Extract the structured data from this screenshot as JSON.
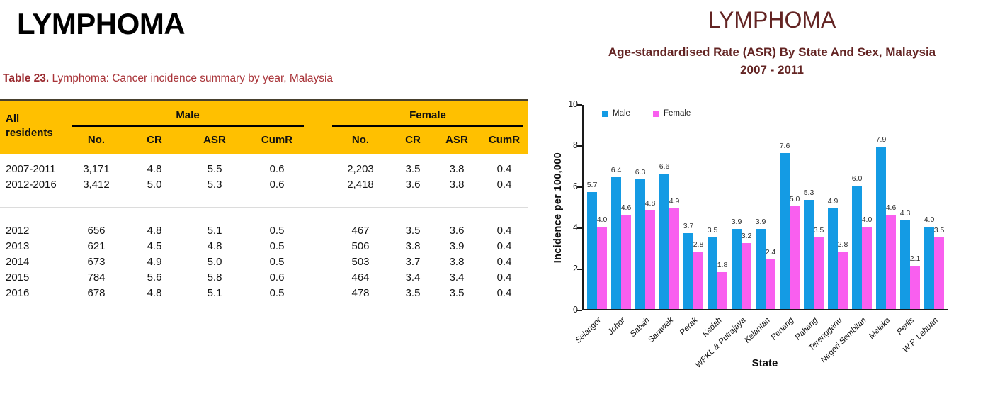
{
  "left": {
    "title": "LYMPHOMA",
    "caption_prefix": "Table 23.",
    "caption_text": " Lymphoma: Cancer incidence summary by year, Malaysia",
    "caption_color": "#A93439",
    "caption_prefix_color": "#9B2B30",
    "table": {
      "header_bg": "#FFC000",
      "row_header": "All residents",
      "group_headers": [
        "Male",
        "Female"
      ],
      "sub_headers": [
        "No.",
        "CR",
        "ASR",
        "CumR"
      ],
      "period_rows": [
        [
          "2007-2011",
          "3,171",
          "4.8",
          "5.5",
          "0.6",
          "2,203",
          "3.5",
          "3.8",
          "0.4"
        ],
        [
          "2012-2016",
          "3,412",
          "5.0",
          "5.3",
          "0.6",
          "2,418",
          "3.6",
          "3.8",
          "0.4"
        ]
      ],
      "year_rows": [
        [
          "2012",
          "656",
          "4.8",
          "5.1",
          "0.5",
          "467",
          "3.5",
          "3.6",
          "0.4"
        ],
        [
          "2013",
          "621",
          "4.5",
          "4.8",
          "0.5",
          "506",
          "3.8",
          "3.9",
          "0.4"
        ],
        [
          "2014",
          "673",
          "4.9",
          "5.0",
          "0.5",
          "503",
          "3.7",
          "3.8",
          "0.4"
        ],
        [
          "2015",
          "784",
          "5.6",
          "5.8",
          "0.6",
          "464",
          "3.4",
          "3.4",
          "0.4"
        ],
        [
          "2016",
          "678",
          "4.8",
          "5.1",
          "0.5",
          "478",
          "3.5",
          "3.5",
          "0.4"
        ]
      ]
    }
  },
  "right": {
    "title": "LYMPHOMA",
    "title_color": "#632423",
    "subtitle_line1": "Age-standardised Rate (ASR) By State And Sex, Malaysia",
    "subtitle_line2": "2007 - 2011"
  },
  "chart_data": {
    "type": "bar",
    "title": "LYMPHOMA",
    "subtitle": "Age-standardised Rate (ASR) By State And Sex, Malaysia 2007 - 2011",
    "categories": [
      "Selangor",
      "Johor",
      "Sabah",
      "Sarawak",
      "Perak",
      "Kedah",
      "WPKL & Putrajaya",
      "Kelantan",
      "Penang",
      "Pahang",
      "Terengganu",
      "Negeri Sembilan",
      "Melaka",
      "Perlis",
      "W.P. Labuan"
    ],
    "series": [
      {
        "name": "Male",
        "color": "#149BE4",
        "values": [
          5.7,
          6.4,
          6.3,
          6.6,
          3.7,
          3.5,
          3.9,
          3.9,
          7.6,
          5.3,
          4.9,
          6.0,
          7.9,
          4.3,
          4.0
        ]
      },
      {
        "name": "Female",
        "color": "#F95FEF",
        "values": [
          4.0,
          4.6,
          4.8,
          4.9,
          2.8,
          1.8,
          3.2,
          2.4,
          5.0,
          3.5,
          2.8,
          4.0,
          4.6,
          2.1,
          3.5
        ]
      }
    ],
    "xlabel": "State",
    "ylabel": "Incidence per 100,000",
    "ylim": [
      0,
      10
    ],
    "yticks": [
      0,
      2,
      4,
      6,
      8,
      10
    ],
    "grid": false,
    "legend_position": "top-left-inside",
    "data_labels": true
  }
}
